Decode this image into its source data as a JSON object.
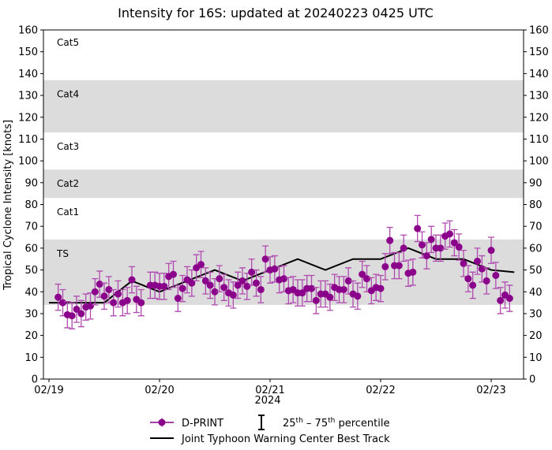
{
  "chart_data": {
    "type": "line",
    "title": "Intensity for 16S: updated at 20240223 0425 UTC",
    "ylabel": "Tropical Cyclone Intensity [knots]",
    "xlabel": "2024",
    "ylim": [
      0,
      160
    ],
    "yticks": [
      0,
      10,
      20,
      30,
      40,
      50,
      60,
      70,
      80,
      90,
      100,
      110,
      120,
      130,
      140,
      150,
      160
    ],
    "xticks": [
      {
        "t": "2024-02-19 00:00",
        "label": "02/19"
      },
      {
        "t": "2024-02-20 00:00",
        "label": "02/20"
      },
      {
        "t": "2024-02-21 00:00",
        "label": "02/21"
      },
      {
        "t": "2024-02-22 00:00",
        "label": "02/22"
      },
      {
        "t": "2024-02-23 00:00",
        "label": "02/23"
      }
    ],
    "xlim": [
      "2024-02-18 23:00",
      "2024-02-23 09:00"
    ],
    "grid": false,
    "categories_bands": [
      {
        "label": "TS",
        "lo": 34,
        "hi": 64,
        "shaded": true
      },
      {
        "label": "Cat1",
        "lo": 64,
        "hi": 83,
        "shaded": false
      },
      {
        "label": "Cat2",
        "lo": 83,
        "hi": 96,
        "shaded": true
      },
      {
        "label": "Cat3",
        "lo": 96,
        "hi": 113,
        "shaded": false
      },
      {
        "label": "Cat4",
        "lo": 113,
        "hi": 137,
        "shaded": true
      },
      {
        "label": "Cat5",
        "lo": 137,
        "hi": 160,
        "shaded": false
      }
    ],
    "band_color": "#dcdcdc",
    "legend": {
      "placement": "bottom",
      "dprint": "D-PRINT",
      "percentile_base1": "25",
      "percentile_sup1": "th",
      "percentile_dash": " – ",
      "percentile_base2": "75",
      "percentile_sup2": "th",
      "percentile_word": " percentile",
      "best_track": "Joint Typhoon Warning Center Best Track"
    },
    "series": [
      {
        "name": "D-PRINT",
        "color": "#8b008b",
        "errorbar_color": "#b04ab0",
        "points": [
          [
            "2024-02-19 02:00",
            37.5
          ],
          [
            "2024-02-19 03:00",
            35
          ],
          [
            "2024-02-19 04:00",
            29.5
          ],
          [
            "2024-02-19 05:00",
            29
          ],
          [
            "2024-02-19 06:00",
            32
          ],
          [
            "2024-02-19 07:00",
            30
          ],
          [
            "2024-02-19 08:00",
            33
          ],
          [
            "2024-02-19 09:00",
            33.5
          ],
          [
            "2024-02-19 10:00",
            40
          ],
          [
            "2024-02-19 11:00",
            43.5
          ],
          [
            "2024-02-19 12:00",
            38
          ],
          [
            "2024-02-19 13:00",
            41
          ],
          [
            "2024-02-19 14:00",
            35
          ],
          [
            "2024-02-19 15:00",
            39
          ],
          [
            "2024-02-19 16:00",
            35
          ],
          [
            "2024-02-19 17:00",
            36
          ],
          [
            "2024-02-19 18:00",
            45.5
          ],
          [
            "2024-02-19 19:00",
            36.5
          ],
          [
            "2024-02-19 20:00",
            35
          ],
          [
            "2024-02-19 22:00",
            43
          ],
          [
            "2024-02-19 23:00",
            43
          ],
          [
            "2024-02-20 00:00",
            42.5
          ],
          [
            "2024-02-20 01:00",
            42.5
          ],
          [
            "2024-02-20 02:00",
            47
          ],
          [
            "2024-02-20 03:00",
            48
          ],
          [
            "2024-02-20 04:00",
            37
          ],
          [
            "2024-02-20 05:00",
            41.5
          ],
          [
            "2024-02-20 06:00",
            45.5
          ],
          [
            "2024-02-20 07:00",
            44
          ],
          [
            "2024-02-20 08:00",
            51
          ],
          [
            "2024-02-20 09:00",
            52.5
          ],
          [
            "2024-02-20 10:00",
            45
          ],
          [
            "2024-02-20 11:00",
            43
          ],
          [
            "2024-02-20 12:00",
            40
          ],
          [
            "2024-02-20 13:00",
            46
          ],
          [
            "2024-02-20 14:00",
            42
          ],
          [
            "2024-02-20 15:00",
            39.5
          ],
          [
            "2024-02-20 16:00",
            38.5
          ],
          [
            "2024-02-20 17:00",
            43
          ],
          [
            "2024-02-20 18:00",
            45
          ],
          [
            "2024-02-20 19:00",
            42.5
          ],
          [
            "2024-02-20 20:00",
            49
          ],
          [
            "2024-02-20 21:00",
            44
          ],
          [
            "2024-02-20 22:00",
            41
          ],
          [
            "2024-02-20 23:00",
            55
          ],
          [
            "2024-02-21 00:00",
            50
          ],
          [
            "2024-02-21 01:00",
            50.5
          ],
          [
            "2024-02-21 02:00",
            45.5
          ],
          [
            "2024-02-21 03:00",
            46
          ],
          [
            "2024-02-21 04:00",
            40.5
          ],
          [
            "2024-02-21 05:00",
            41
          ],
          [
            "2024-02-21 06:00",
            39.5
          ],
          [
            "2024-02-21 07:00",
            39.5
          ],
          [
            "2024-02-21 08:00",
            41.5
          ],
          [
            "2024-02-21 09:00",
            41.5
          ],
          [
            "2024-02-21 10:00",
            36
          ],
          [
            "2024-02-21 11:00",
            39
          ],
          [
            "2024-02-21 12:00",
            39
          ],
          [
            "2024-02-21 13:00",
            37.5
          ],
          [
            "2024-02-21 14:00",
            42
          ],
          [
            "2024-02-21 15:00",
            41
          ],
          [
            "2024-02-21 16:00",
            41
          ],
          [
            "2024-02-21 17:00",
            45
          ],
          [
            "2024-02-21 18:00",
            39
          ],
          [
            "2024-02-21 19:00",
            38
          ],
          [
            "2024-02-21 20:00",
            48
          ],
          [
            "2024-02-21 21:00",
            46
          ],
          [
            "2024-02-21 22:00",
            40.5
          ],
          [
            "2024-02-21 23:00",
            42
          ],
          [
            "2024-02-22 00:00",
            41.5
          ],
          [
            "2024-02-22 01:00",
            51.5
          ],
          [
            "2024-02-22 02:00",
            63.5
          ],
          [
            "2024-02-22 03:00",
            52
          ],
          [
            "2024-02-22 04:00",
            52
          ],
          [
            "2024-02-22 05:00",
            60
          ],
          [
            "2024-02-22 06:00",
            48.5
          ],
          [
            "2024-02-22 07:00",
            49
          ],
          [
            "2024-02-22 08:00",
            69
          ],
          [
            "2024-02-22 09:00",
            61.5
          ],
          [
            "2024-02-22 10:00",
            56.5
          ],
          [
            "2024-02-22 11:00",
            64
          ],
          [
            "2024-02-22 12:00",
            60
          ],
          [
            "2024-02-22 13:00",
            60
          ],
          [
            "2024-02-22 14:00",
            65.5
          ],
          [
            "2024-02-22 15:00",
            66.5
          ],
          [
            "2024-02-22 16:00",
            62.5
          ],
          [
            "2024-02-22 17:00",
            60.5
          ],
          [
            "2024-02-22 18:00",
            53
          ],
          [
            "2024-02-22 19:00",
            46
          ],
          [
            "2024-02-22 20:00",
            43
          ],
          [
            "2024-02-22 21:00",
            54
          ],
          [
            "2024-02-22 22:00",
            50.5
          ],
          [
            "2024-02-22 23:00",
            45
          ],
          [
            "2024-02-23 00:00",
            59
          ],
          [
            "2024-02-23 01:00",
            47.5
          ],
          [
            "2024-02-23 02:00",
            36
          ],
          [
            "2024-02-23 03:00",
            38.5
          ],
          [
            "2024-02-23 04:00",
            37
          ]
        ],
        "percentile_halfwidth": 6
      },
      {
        "name": "Joint Typhoon Warning Center Best Track",
        "color": "#000000",
        "points": [
          [
            "2024-02-19 00:00",
            35
          ],
          [
            "2024-02-19 12:00",
            35
          ],
          [
            "2024-02-19 18:00",
            45
          ],
          [
            "2024-02-20 00:00",
            40
          ],
          [
            "2024-02-20 12:00",
            50
          ],
          [
            "2024-02-20 18:00",
            45
          ],
          [
            "2024-02-21 06:00",
            55
          ],
          [
            "2024-02-21 12:00",
            50
          ],
          [
            "2024-02-21 18:00",
            55
          ],
          [
            "2024-02-22 00:00",
            55
          ],
          [
            "2024-02-22 06:00",
            60
          ],
          [
            "2024-02-22 12:00",
            55
          ],
          [
            "2024-02-22 18:00",
            55
          ],
          [
            "2024-02-23 00:00",
            50
          ],
          [
            "2024-02-23 05:00",
            49
          ]
        ]
      }
    ]
  }
}
